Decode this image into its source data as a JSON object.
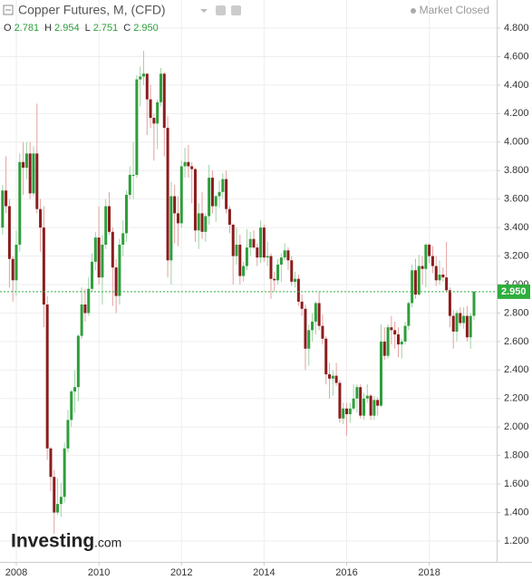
{
  "chart_data": {
    "type": "candlestick",
    "title": "Copper Futures, M, (CFD)",
    "status": "Market Closed",
    "logo": "Investing",
    "logo_suffix": ".com",
    "ohlc": [
      {
        "key": "O",
        "text": "2.781"
      },
      {
        "key": "H",
        "text": "2.954"
      },
      {
        "key": "L",
        "text": "2.751"
      },
      {
        "key": "C",
        "text": "2.950"
      }
    ],
    "last_price": {
      "value": 2.95,
      "label": "2.950"
    },
    "up_color": "#2e9e3b",
    "down_color": "#8b1d1d",
    "grid": true,
    "x": [
      "2007-09",
      "2007-10",
      "2007-11",
      "2007-12",
      "2008-01",
      "2008-02",
      "2008-03",
      "2008-04",
      "2008-05",
      "2008-06",
      "2008-07",
      "2008-08",
      "2008-09",
      "2008-10",
      "2008-11",
      "2008-12",
      "2009-01",
      "2009-02",
      "2009-03",
      "2009-04",
      "2009-05",
      "2009-06",
      "2009-07",
      "2009-08",
      "2009-09",
      "2009-10",
      "2009-11",
      "2009-12",
      "2010-01",
      "2010-02",
      "2010-03",
      "2010-04",
      "2010-05",
      "2010-06",
      "2010-07",
      "2010-08",
      "2010-09",
      "2010-10",
      "2010-11",
      "2010-12",
      "2011-01",
      "2011-02",
      "2011-03",
      "2011-04",
      "2011-05",
      "2011-06",
      "2011-07",
      "2011-08",
      "2011-09",
      "2011-10",
      "2011-11",
      "2011-12",
      "2012-01",
      "2012-02",
      "2012-03",
      "2012-04",
      "2012-05",
      "2012-06",
      "2012-07",
      "2012-08",
      "2012-09",
      "2012-10",
      "2012-11",
      "2012-12",
      "2013-01",
      "2013-02",
      "2013-03",
      "2013-04",
      "2013-05",
      "2013-06",
      "2013-07",
      "2013-08",
      "2013-09",
      "2013-10",
      "2013-11",
      "2013-12",
      "2014-01",
      "2014-02",
      "2014-03",
      "2014-04",
      "2014-05",
      "2014-06",
      "2014-07",
      "2014-08",
      "2014-09",
      "2014-10",
      "2014-11",
      "2014-12",
      "2015-01",
      "2015-02",
      "2015-03",
      "2015-04",
      "2015-05",
      "2015-06",
      "2015-07",
      "2015-08",
      "2015-09",
      "2015-10",
      "2015-11",
      "2015-12",
      "2016-01",
      "2016-02",
      "2016-03",
      "2016-04",
      "2016-05",
      "2016-06",
      "2016-07",
      "2016-08",
      "2016-09",
      "2016-10",
      "2016-11",
      "2016-12",
      "2017-01",
      "2017-02",
      "2017-03",
      "2017-04",
      "2017-05",
      "2017-06",
      "2017-07",
      "2017-08",
      "2017-09",
      "2017-10",
      "2017-11",
      "2017-12",
      "2018-01",
      "2018-02",
      "2018-03",
      "2018-04",
      "2018-05",
      "2018-06",
      "2018-07",
      "2018-08",
      "2018-09",
      "2018-10",
      "2018-11",
      "2018-12",
      "2019-01",
      "2019-02"
    ],
    "open": [
      3.4,
      3.66,
      3.55,
      3.18,
      3.03,
      3.28,
      3.86,
      3.82,
      3.92,
      3.64,
      3.92,
      3.53,
      3.4,
      2.86,
      1.85,
      1.65,
      1.4,
      1.46,
      1.51,
      1.85,
      2.05,
      2.25,
      2.28,
      2.64,
      2.86,
      2.8,
      2.97,
      3.16,
      3.33,
      3.05,
      3.28,
      3.55,
      3.37,
      3.12,
      2.92,
      3.28,
      3.36,
      3.63,
      3.77,
      3.77,
      4.44,
      4.46,
      4.48,
      4.3,
      4.17,
      4.13,
      4.28,
      4.48,
      4.1,
      3.17,
      3.62,
      3.5,
      3.43,
      3.83,
      3.86,
      3.83,
      3.81,
      3.38,
      3.5,
      3.37,
      3.48,
      3.75,
      3.55,
      3.62,
      3.65,
      3.74,
      3.53,
      3.42,
      3.2,
      3.28,
      3.06,
      3.13,
      3.26,
      3.32,
      3.26,
      3.19,
      3.4,
      3.19,
      3.2,
      3.04,
      3.03,
      3.14,
      3.19,
      3.24,
      3.17,
      3.02,
      3.04,
      2.88,
      2.83,
      2.55,
      2.68,
      2.74,
      2.87,
      2.71,
      2.62,
      2.37,
      2.34,
      2.36,
      2.31,
      2.06,
      2.13,
      2.09,
      2.13,
      2.2,
      2.28,
      2.08,
      2.2,
      2.22,
      2.08,
      2.19,
      2.15,
      2.6,
      2.5,
      2.7,
      2.68,
      2.65,
      2.58,
      2.6,
      2.71,
      2.87,
      3.1,
      2.93,
      3.13,
      3.11,
      3.28,
      3.2,
      3.13,
      3.03,
      3.07,
      3.05,
      2.96,
      2.78,
      2.67,
      2.8,
      2.73,
      2.78,
      2.63,
      2.781
    ],
    "high": [
      3.7,
      3.9,
      3.6,
      3.2,
      3.38,
      3.92,
      4.0,
      4.0,
      4.0,
      3.97,
      4.27,
      3.6,
      3.55,
      2.92,
      1.86,
      1.7,
      1.64,
      1.61,
      1.89,
      2.12,
      2.26,
      2.4,
      2.65,
      2.98,
      2.97,
      3.05,
      3.22,
      3.37,
      3.55,
      3.35,
      3.6,
      3.65,
      3.4,
      3.18,
      3.32,
      3.45,
      3.66,
      3.83,
      4.0,
      4.47,
      4.53,
      4.64,
      4.48,
      4.4,
      4.2,
      4.3,
      4.52,
      4.49,
      4.18,
      3.72,
      3.7,
      3.62,
      3.87,
      3.96,
      3.98,
      3.86,
      3.82,
      3.57,
      3.65,
      3.5,
      3.84,
      3.8,
      3.63,
      3.73,
      3.78,
      3.8,
      3.55,
      3.43,
      3.4,
      3.35,
      3.16,
      3.39,
      3.37,
      3.38,
      3.29,
      3.45,
      3.42,
      3.3,
      3.22,
      3.09,
      3.18,
      3.22,
      3.29,
      3.26,
      3.2,
      3.09,
      3.07,
      2.93,
      2.86,
      2.72,
      2.8,
      2.88,
      2.95,
      2.79,
      2.64,
      2.45,
      2.4,
      2.45,
      2.33,
      2.17,
      2.17,
      2.17,
      2.3,
      2.3,
      2.3,
      2.24,
      2.3,
      2.23,
      2.22,
      2.21,
      2.72,
      2.7,
      2.72,
      2.78,
      2.74,
      2.7,
      2.62,
      2.74,
      2.88,
      3.14,
      3.18,
      3.21,
      3.2,
      3.29,
      3.29,
      3.27,
      3.2,
      3.17,
      3.12,
      3.3,
      2.98,
      2.82,
      2.82,
      2.84,
      2.84,
      2.85,
      2.8,
      2.954
    ],
    "low": [
      3.35,
      3.5,
      2.98,
      2.88,
      2.92,
      3.23,
      3.63,
      3.74,
      3.6,
      3.62,
      3.5,
      3.23,
      2.7,
      1.77,
      1.55,
      1.25,
      1.38,
      1.37,
      1.47,
      1.82,
      2.0,
      2.1,
      2.18,
      2.62,
      2.74,
      2.78,
      2.95,
      3.1,
      3.0,
      2.86,
      3.25,
      3.35,
      2.85,
      2.8,
      2.86,
      3.2,
      3.3,
      3.6,
      3.6,
      3.75,
      4.25,
      4.4,
      4.05,
      4.1,
      3.87,
      3.95,
      4.25,
      3.9,
      3.05,
      3.0,
      3.29,
      3.27,
      3.4,
      3.75,
      3.75,
      3.57,
      3.3,
      3.25,
      3.32,
      3.3,
      3.42,
      3.5,
      3.44,
      3.54,
      3.6,
      3.5,
      3.36,
      3.0,
      3.14,
      3.0,
      3.02,
      3.1,
      3.2,
      3.25,
      3.13,
      3.15,
      3.16,
      3.13,
      2.9,
      2.95,
      3.0,
      3.02,
      3.17,
      3.1,
      2.99,
      2.98,
      2.85,
      2.78,
      2.4,
      2.43,
      2.6,
      2.65,
      2.68,
      2.58,
      2.3,
      2.2,
      2.22,
      2.29,
      2.03,
      2.02,
      1.94,
      2.03,
      2.12,
      2.1,
      2.06,
      2.05,
      2.17,
      2.05,
      2.05,
      2.08,
      2.14,
      2.47,
      2.48,
      2.58,
      2.55,
      2.49,
      2.48,
      2.58,
      2.68,
      2.84,
      2.9,
      2.92,
      3.0,
      2.98,
      3.15,
      3.08,
      2.99,
      3.0,
      3.02,
      2.95,
      2.7,
      2.55,
      2.6,
      2.71,
      2.69,
      2.6,
      2.55,
      2.751
    ],
    "close": [
      3.66,
      3.55,
      3.18,
      3.03,
      3.28,
      3.86,
      3.82,
      3.92,
      3.64,
      3.92,
      3.53,
      3.4,
      2.86,
      1.85,
      1.65,
      1.4,
      1.46,
      1.51,
      1.85,
      2.05,
      2.25,
      2.28,
      2.64,
      2.86,
      2.8,
      2.97,
      3.16,
      3.33,
      3.05,
      3.28,
      3.55,
      3.37,
      3.12,
      2.92,
      3.28,
      3.36,
      3.63,
      3.77,
      3.77,
      4.44,
      4.46,
      4.48,
      4.3,
      4.17,
      4.13,
      4.28,
      4.48,
      4.1,
      3.17,
      3.62,
      3.5,
      3.43,
      3.83,
      3.86,
      3.83,
      3.81,
      3.38,
      3.5,
      3.37,
      3.48,
      3.75,
      3.55,
      3.62,
      3.65,
      3.74,
      3.53,
      3.42,
      3.2,
      3.28,
      3.06,
      3.13,
      3.26,
      3.32,
      3.26,
      3.19,
      3.4,
      3.19,
      3.2,
      3.04,
      3.03,
      3.14,
      3.19,
      3.24,
      3.17,
      3.02,
      3.04,
      2.88,
      2.83,
      2.55,
      2.68,
      2.74,
      2.87,
      2.71,
      2.62,
      2.37,
      2.34,
      2.36,
      2.31,
      2.06,
      2.13,
      2.09,
      2.13,
      2.2,
      2.28,
      2.08,
      2.2,
      2.22,
      2.08,
      2.19,
      2.15,
      2.6,
      2.5,
      2.7,
      2.68,
      2.65,
      2.58,
      2.6,
      2.71,
      2.87,
      3.1,
      2.93,
      3.13,
      3.11,
      3.28,
      3.2,
      3.13,
      3.03,
      3.07,
      3.05,
      2.96,
      2.78,
      2.67,
      2.8,
      2.73,
      2.78,
      2.63,
      2.78,
      2.95
    ],
    "ylim": [
      1.2,
      4.8
    ],
    "yticks": [
      {
        "value": 1.2,
        "label": "1.200"
      },
      {
        "value": 1.4,
        "label": "1.400"
      },
      {
        "value": 1.6,
        "label": "1.600"
      },
      {
        "value": 1.8,
        "label": "1.800"
      },
      {
        "value": 2.0,
        "label": "2.000"
      },
      {
        "value": 2.2,
        "label": "2.200"
      },
      {
        "value": 2.4,
        "label": "2.400"
      },
      {
        "value": 2.6,
        "label": "2.600"
      },
      {
        "value": 2.8,
        "label": "2.800"
      },
      {
        "value": 3.0,
        "label": "3.000"
      },
      {
        "value": 3.2,
        "label": "3.200"
      },
      {
        "value": 3.4,
        "label": "3.400"
      },
      {
        "value": 3.6,
        "label": "3.600"
      },
      {
        "value": 3.8,
        "label": "3.800"
      },
      {
        "value": 4.0,
        "label": "4.000"
      },
      {
        "value": 4.2,
        "label": "4.200"
      },
      {
        "value": 4.4,
        "label": "4.400"
      },
      {
        "value": 4.6,
        "label": "4.600"
      },
      {
        "value": 4.8,
        "label": "4.800"
      }
    ],
    "xticks": [
      {
        "value": "2008-01",
        "label": "2008"
      },
      {
        "value": "2010-01",
        "label": "2010"
      },
      {
        "value": "2012-01",
        "label": "2012"
      },
      {
        "value": "2014-01",
        "label": "2014"
      },
      {
        "value": "2016-01",
        "label": "2016"
      },
      {
        "value": "2018-01",
        "label": "2018"
      }
    ]
  }
}
